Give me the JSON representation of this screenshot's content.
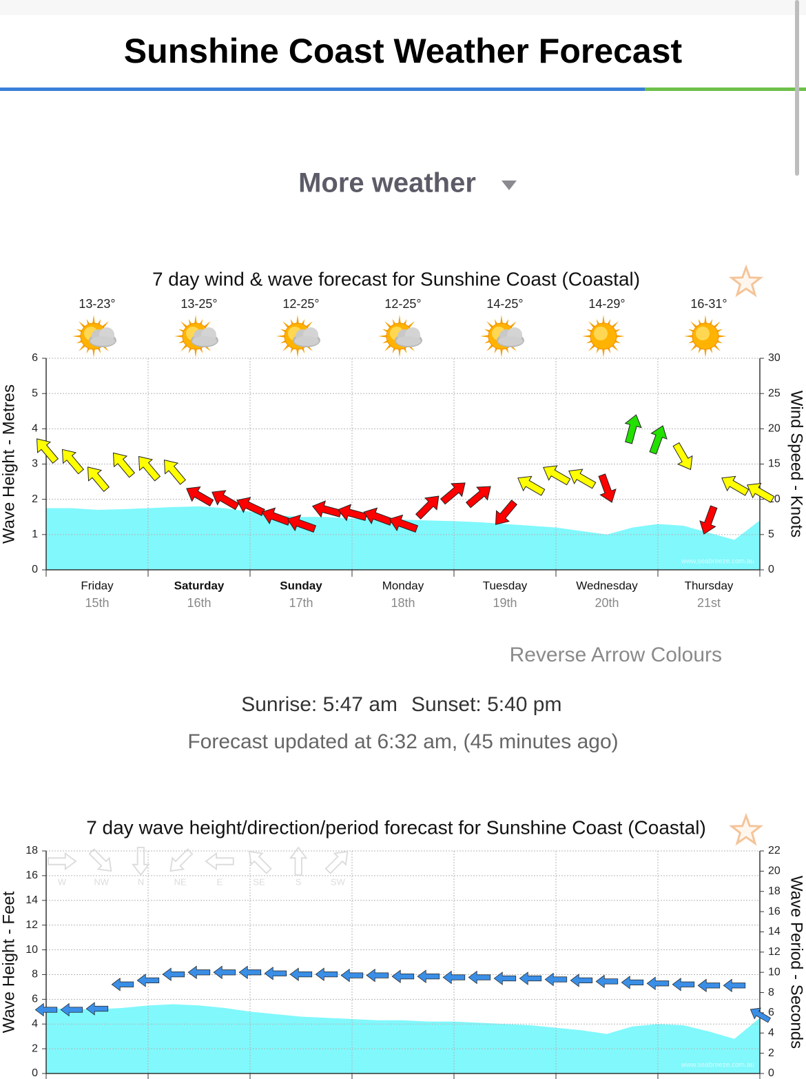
{
  "header": {
    "title": "Sunshine Coast Weather Forecast"
  },
  "menu": {
    "label": "More weather"
  },
  "controls": {
    "reverse": "Reverse Arrow Colours"
  },
  "sun": {
    "sunrise": "Sunrise: 5:47 am",
    "sunset": "Sunset: 5:40 pm"
  },
  "updated": "Forecast updated at 6:32 am, (45 minutes ago)",
  "chart_data": [
    {
      "type": "area",
      "title": "7 day wind & wave forecast for Sunshine Coast (Coastal)",
      "temps": [
        "13-23°",
        "13-25°",
        "12-25°",
        "12-25°",
        "14-25°",
        "14-29°",
        "16-31°"
      ],
      "icons": [
        "partly-cloudy",
        "partly-cloudy",
        "partly-cloudy",
        "partly-cloudy",
        "partly-cloudy",
        "sunny",
        "sunny"
      ],
      "days": [
        "Friday",
        "Saturday",
        "Sunday",
        "Monday",
        "Tuesday",
        "Wednesday",
        "Thursday"
      ],
      "dates": [
        "15th",
        "16th",
        "17th",
        "18th",
        "19th",
        "20th",
        "21st"
      ],
      "day_bold": [
        false,
        true,
        true,
        false,
        false,
        false,
        false
      ],
      "ylabel": "Wave Height - Metres",
      "y2label": "Wind Speed - Knots",
      "watermark": "www.seabreeze.com.au",
      "x": [
        0,
        6,
        12,
        18,
        24,
        30,
        36,
        42,
        48,
        54,
        60,
        66,
        72,
        78,
        84,
        90,
        96,
        102,
        108,
        114,
        120,
        126,
        132,
        138,
        144,
        150,
        156,
        162,
        168
      ],
      "xlim": [
        0,
        168
      ],
      "xticks": [
        0,
        24,
        48,
        72,
        96,
        120,
        144,
        168
      ],
      "ylim": [
        0,
        6
      ],
      "yticks": [
        0,
        1,
        2,
        3,
        4,
        5,
        6
      ],
      "y2lim": [
        0,
        30
      ],
      "y2ticks": [
        0,
        5,
        10,
        15,
        20,
        25,
        30
      ],
      "grid": true,
      "series": [
        {
          "color": "#80f8fc",
          "values": [
            1.75,
            1.75,
            1.7,
            1.72,
            1.75,
            1.78,
            1.8,
            1.75,
            1.65,
            1.55,
            1.5,
            1.5,
            1.45,
            1.45,
            1.42,
            1.4,
            1.38,
            1.35,
            1.3,
            1.25,
            1.2,
            1.1,
            1.0,
            1.2,
            1.3,
            1.25,
            1.05,
            0.85,
            1.4
          ]
        },
        {
          "axis": "y2",
          "values": [
            17,
            15.5,
            13,
            15,
            14.5,
            14,
            10.5,
            10,
            9,
            7.5,
            6.5,
            8.5,
            8,
            7.5,
            6.5,
            9,
            11,
            10.5,
            8,
            12,
            13.5,
            13,
            11.5,
            20,
            18.5,
            16,
            7,
            12,
            11
          ],
          "colors": [
            "#ffff00",
            "#ffff00",
            "#ffff00",
            "#ffff00",
            "#ffff00",
            "#ffff00",
            "#ff0000",
            "#ff0000",
            "#ff0000",
            "#ff0000",
            "#ff0000",
            "#ff0000",
            "#ff0000",
            "#ff0000",
            "#ff0000",
            "#ff0000",
            "#ff0000",
            "#ff0000",
            "#ff0000",
            "#ffff00",
            "#ffff00",
            "#ffff00",
            "#ff0000",
            "#22e000",
            "#22e000",
            "#ffff00",
            "#ff0000",
            "#ffff00",
            "#ffff00"
          ],
          "directions": [
            320,
            320,
            320,
            320,
            320,
            320,
            300,
            300,
            295,
            290,
            290,
            285,
            285,
            290,
            290,
            45,
            50,
            50,
            220,
            300,
            300,
            300,
            160,
            15,
            20,
            150,
            200,
            300,
            300
          ]
        }
      ]
    },
    {
      "type": "area",
      "title": "7 day wave height/direction/period forecast for Sunshine Coast (Coastal)",
      "compass": [
        "W",
        "NW",
        "N",
        "NE",
        "E",
        "SE",
        "S",
        "SW"
      ],
      "compass_angles": [
        90,
        135,
        180,
        225,
        270,
        315,
        0,
        45
      ],
      "ylabel": "Wave Height - Feet",
      "y2label": "Wave Period - Seconds",
      "watermark": "www.seabreeze.com.au",
      "x": [
        0,
        6,
        12,
        18,
        24,
        30,
        36,
        42,
        48,
        54,
        60,
        66,
        72,
        78,
        84,
        90,
        96,
        102,
        108,
        114,
        120,
        126,
        132,
        138,
        144,
        150,
        156,
        162,
        168
      ],
      "xlim": [
        0,
        168
      ],
      "xticks": [
        0,
        24,
        48,
        72,
        96,
        120,
        144,
        168
      ],
      "ylim": [
        0,
        18
      ],
      "yticks": [
        0,
        2,
        4,
        6,
        8,
        10,
        12,
        14,
        16,
        18
      ],
      "y2lim": [
        0,
        22
      ],
      "y2ticks": [
        0,
        2,
        4,
        6,
        8,
        10,
        12,
        14,
        16,
        18,
        20,
        22
      ],
      "grid": true,
      "series": [
        {
          "color": "#80f8fc",
          "values": [
            5.3,
            5.2,
            5.2,
            5.3,
            5.5,
            5.6,
            5.5,
            5.3,
            5.0,
            4.8,
            4.6,
            4.5,
            4.4,
            4.3,
            4.3,
            4.2,
            4.2,
            4.1,
            4.0,
            3.9,
            3.7,
            3.5,
            3.2,
            3.8,
            4.0,
            3.9,
            3.4,
            2.8,
            4.5
          ]
        },
        {
          "axis": "y2",
          "color": "#3a8ee6",
          "values": [
            6.3,
            6.3,
            6.4,
            8.8,
            9.2,
            9.8,
            10,
            10,
            10,
            9.9,
            9.8,
            9.8,
            9.7,
            9.7,
            9.6,
            9.6,
            9.5,
            9.5,
            9.4,
            9.4,
            9.3,
            9.2,
            9.1,
            9.0,
            8.9,
            8.8,
            8.7,
            8.7,
            5.8
          ],
          "directions": [
            270,
            270,
            270,
            270,
            270,
            270,
            270,
            270,
            270,
            270,
            270,
            270,
            270,
            270,
            270,
            270,
            270,
            270,
            270,
            270,
            270,
            270,
            270,
            270,
            270,
            270,
            270,
            270,
            300
          ]
        }
      ]
    }
  ]
}
